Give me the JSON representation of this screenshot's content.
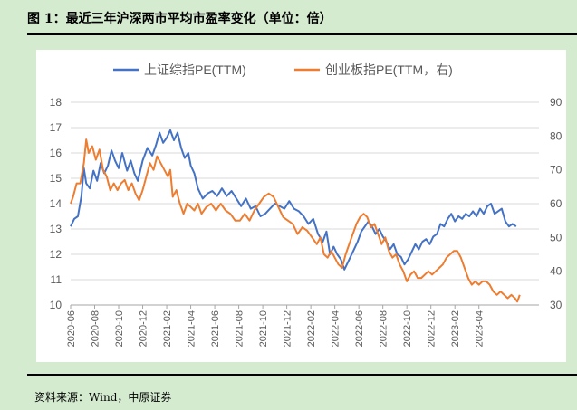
{
  "figure": {
    "title": "图 1：最近三年沪深两市平均市盈率变化（单位：倍）",
    "source": "资料来源：Wind，中原证券"
  },
  "colors": {
    "series1": "#4472c4",
    "series2": "#ed7d31",
    "axis": "#a6a6a6",
    "text": "#595959",
    "background": "#d4ebd0"
  },
  "chart_data": {
    "type": "line",
    "title": "",
    "xlabel": "",
    "ylabel": "",
    "x_ticks": [
      "2020-06",
      "2020-08",
      "2020-10",
      "2020-12",
      "2021-02",
      "2021-04",
      "2021-06",
      "2021-08",
      "2021-10",
      "2021-12",
      "2022-02",
      "2022-04",
      "2022-06",
      "2022-08",
      "2022-10",
      "2022-12",
      "2023-02",
      "2023-04"
    ],
    "x_range": [
      0,
      39
    ],
    "x_unit": "months since 2020-06",
    "y_left": {
      "range": [
        10,
        18
      ],
      "ticks": [
        10,
        11,
        12,
        13,
        14,
        15,
        16,
        17,
        18
      ]
    },
    "y_right": {
      "range": [
        30,
        90
      ],
      "ticks": [
        30,
        40,
        50,
        60,
        70,
        80,
        90
      ]
    },
    "legend_position": "top",
    "series": [
      {
        "name": "上证综指PE(TTM)",
        "axis": "left",
        "points": [
          [
            0,
            13.1
          ],
          [
            0.3,
            13.4
          ],
          [
            0.6,
            13.5
          ],
          [
            0.9,
            14.3
          ],
          [
            1.1,
            15.4
          ],
          [
            1.3,
            14.8
          ],
          [
            1.6,
            14.6
          ],
          [
            1.9,
            15.3
          ],
          [
            2.2,
            14.9
          ],
          [
            2.5,
            15.6
          ],
          [
            2.8,
            15.2
          ],
          [
            3.1,
            15.5
          ],
          [
            3.4,
            16.1
          ],
          [
            3.7,
            15.7
          ],
          [
            4.0,
            15.4
          ],
          [
            4.3,
            16.0
          ],
          [
            4.7,
            15.3
          ],
          [
            5.0,
            15.7
          ],
          [
            5.3,
            15.2
          ],
          [
            5.6,
            14.9
          ],
          [
            6.0,
            15.7
          ],
          [
            6.4,
            16.2
          ],
          [
            6.8,
            15.9
          ],
          [
            7.1,
            16.3
          ],
          [
            7.4,
            16.8
          ],
          [
            7.7,
            16.4
          ],
          [
            8.0,
            16.6
          ],
          [
            8.3,
            16.9
          ],
          [
            8.6,
            16.5
          ],
          [
            8.9,
            16.8
          ],
          [
            9.2,
            16.2
          ],
          [
            9.5,
            15.8
          ],
          [
            9.8,
            16.0
          ],
          [
            10.0,
            15.5
          ],
          [
            10.3,
            15.2
          ],
          [
            10.6,
            14.6
          ],
          [
            11.0,
            14.2
          ],
          [
            11.4,
            14.4
          ],
          [
            11.8,
            14.5
          ],
          [
            12.2,
            14.3
          ],
          [
            12.6,
            14.6
          ],
          [
            13.0,
            14.3
          ],
          [
            13.4,
            14.5
          ],
          [
            13.8,
            14.2
          ],
          [
            14.2,
            13.9
          ],
          [
            14.6,
            14.2
          ],
          [
            15.0,
            13.8
          ],
          [
            15.4,
            13.9
          ],
          [
            15.8,
            13.5
          ],
          [
            16.2,
            13.6
          ],
          [
            16.6,
            13.8
          ],
          [
            17.0,
            14.0
          ],
          [
            17.4,
            13.9
          ],
          [
            17.8,
            13.8
          ],
          [
            18.2,
            14.1
          ],
          [
            18.6,
            13.8
          ],
          [
            19.0,
            13.7
          ],
          [
            19.4,
            13.5
          ],
          [
            19.8,
            13.2
          ],
          [
            20.2,
            13.4
          ],
          [
            20.6,
            12.8
          ],
          [
            21.0,
            12.5
          ],
          [
            21.3,
            12.9
          ],
          [
            21.6,
            12.0
          ],
          [
            21.9,
            12.3
          ],
          [
            22.2,
            12.0
          ],
          [
            22.5,
            11.8
          ],
          [
            22.8,
            11.4
          ],
          [
            23.0,
            11.6
          ],
          [
            23.3,
            11.9
          ],
          [
            23.6,
            12.2
          ],
          [
            23.9,
            12.5
          ],
          [
            24.2,
            12.9
          ],
          [
            24.5,
            13.1
          ],
          [
            24.8,
            13.3
          ],
          [
            25.1,
            13.1
          ],
          [
            25.4,
            12.8
          ],
          [
            25.7,
            13.0
          ],
          [
            26.0,
            12.7
          ],
          [
            26.3,
            12.5
          ],
          [
            26.6,
            12.2
          ],
          [
            26.9,
            12.4
          ],
          [
            27.2,
            12.0
          ],
          [
            27.5,
            11.9
          ],
          [
            27.8,
            11.6
          ],
          [
            28.1,
            11.8
          ],
          [
            28.4,
            12.1
          ],
          [
            28.7,
            12.4
          ],
          [
            29.0,
            12.2
          ],
          [
            29.3,
            12.5
          ],
          [
            29.6,
            12.6
          ],
          [
            29.9,
            12.4
          ],
          [
            30.2,
            12.7
          ],
          [
            30.5,
            12.8
          ],
          [
            30.8,
            13.2
          ],
          [
            31.1,
            13.1
          ],
          [
            31.4,
            13.4
          ],
          [
            31.7,
            13.6
          ],
          [
            32.0,
            13.3
          ],
          [
            32.3,
            13.5
          ],
          [
            32.6,
            13.4
          ],
          [
            32.9,
            13.6
          ],
          [
            33.2,
            13.5
          ],
          [
            33.5,
            13.7
          ],
          [
            33.8,
            13.5
          ],
          [
            34.1,
            13.8
          ],
          [
            34.4,
            13.6
          ],
          [
            34.7,
            13.9
          ],
          [
            35.0,
            14.0
          ],
          [
            35.3,
            13.6
          ],
          [
            35.6,
            13.7
          ],
          [
            35.9,
            13.8
          ],
          [
            36.2,
            13.3
          ],
          [
            36.5,
            13.1
          ],
          [
            36.8,
            13.2
          ],
          [
            37.1,
            13.1
          ]
        ]
      },
      {
        "name": "创业板指PE(TTM，右)",
        "axis": "right",
        "points": [
          [
            0,
            60
          ],
          [
            0.2,
            62
          ],
          [
            0.5,
            66
          ],
          [
            0.8,
            66
          ],
          [
            1.1,
            72
          ],
          [
            1.3,
            79
          ],
          [
            1.5,
            75
          ],
          [
            1.8,
            77
          ],
          [
            2.1,
            73
          ],
          [
            2.4,
            76
          ],
          [
            2.7,
            70
          ],
          [
            3.0,
            68
          ],
          [
            3.3,
            64
          ],
          [
            3.6,
            66
          ],
          [
            3.9,
            64
          ],
          [
            4.2,
            66
          ],
          [
            4.5,
            67
          ],
          [
            4.8,
            64
          ],
          [
            5.1,
            66
          ],
          [
            5.4,
            63
          ],
          [
            5.7,
            61
          ],
          [
            6.0,
            64
          ],
          [
            6.3,
            68
          ],
          [
            6.6,
            72
          ],
          [
            6.9,
            70
          ],
          [
            7.2,
            74
          ],
          [
            7.5,
            72
          ],
          [
            7.8,
            70
          ],
          [
            8.1,
            68
          ],
          [
            8.3,
            70
          ],
          [
            8.5,
            62
          ],
          [
            8.8,
            64
          ],
          [
            9.1,
            60
          ],
          [
            9.4,
            57
          ],
          [
            9.7,
            60
          ],
          [
            10.0,
            59
          ],
          [
            10.3,
            58
          ],
          [
            10.6,
            60
          ],
          [
            10.9,
            57
          ],
          [
            11.3,
            59
          ],
          [
            11.7,
            60
          ],
          [
            12.1,
            58
          ],
          [
            12.5,
            60
          ],
          [
            12.9,
            58
          ],
          [
            13.3,
            57
          ],
          [
            13.7,
            55
          ],
          [
            14.1,
            55
          ],
          [
            14.5,
            57
          ],
          [
            14.9,
            55
          ],
          [
            15.3,
            58
          ],
          [
            15.7,
            60
          ],
          [
            16.1,
            62
          ],
          [
            16.5,
            63
          ],
          [
            16.9,
            62
          ],
          [
            17.3,
            59
          ],
          [
            17.7,
            56
          ],
          [
            18.1,
            55
          ],
          [
            18.5,
            54
          ],
          [
            18.9,
            51
          ],
          [
            19.3,
            53
          ],
          [
            19.7,
            52
          ],
          [
            20.1,
            50
          ],
          [
            20.5,
            48
          ],
          [
            20.8,
            50
          ],
          [
            21.1,
            45
          ],
          [
            21.4,
            44
          ],
          [
            21.7,
            46
          ],
          [
            22.0,
            44
          ],
          [
            22.3,
            42
          ],
          [
            22.6,
            41
          ],
          [
            22.9,
            45
          ],
          [
            23.2,
            48
          ],
          [
            23.5,
            51
          ],
          [
            23.8,
            54
          ],
          [
            24.1,
            56
          ],
          [
            24.4,
            57
          ],
          [
            24.7,
            56
          ],
          [
            25.0,
            53
          ],
          [
            25.3,
            54
          ],
          [
            25.6,
            51
          ],
          [
            25.9,
            48
          ],
          [
            26.2,
            50
          ],
          [
            26.5,
            46
          ],
          [
            26.8,
            44
          ],
          [
            27.1,
            45
          ],
          [
            27.4,
            42
          ],
          [
            27.7,
            40
          ],
          [
            28.0,
            37
          ],
          [
            28.3,
            39
          ],
          [
            28.6,
            40
          ],
          [
            28.9,
            38
          ],
          [
            29.2,
            38
          ],
          [
            29.5,
            39
          ],
          [
            29.8,
            40
          ],
          [
            30.1,
            39
          ],
          [
            30.4,
            40
          ],
          [
            30.7,
            41
          ],
          [
            31.0,
            42
          ],
          [
            31.3,
            44
          ],
          [
            31.6,
            45
          ],
          [
            31.9,
            46
          ],
          [
            32.2,
            46
          ],
          [
            32.5,
            44
          ],
          [
            32.8,
            41
          ],
          [
            33.1,
            38
          ],
          [
            33.4,
            36
          ],
          [
            33.7,
            37
          ],
          [
            34.0,
            36
          ],
          [
            34.3,
            37
          ],
          [
            34.6,
            37
          ],
          [
            34.9,
            36
          ],
          [
            35.2,
            34
          ],
          [
            35.5,
            33
          ],
          [
            35.8,
            34
          ],
          [
            36.1,
            33
          ],
          [
            36.4,
            32
          ],
          [
            36.7,
            33
          ],
          [
            37.0,
            32
          ],
          [
            37.2,
            31
          ],
          [
            37.4,
            33
          ]
        ]
      }
    ]
  }
}
